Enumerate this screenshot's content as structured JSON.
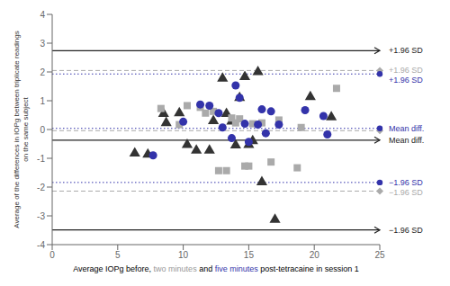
{
  "chart_data": {
    "type": "scatter",
    "xlabel": [
      {
        "text": "Average IOPg before, ",
        "color": "#000000"
      },
      {
        "text": "two minutes",
        "color": "#999999"
      },
      {
        "text": " and ",
        "color": "#000000"
      },
      {
        "text": "five minutes",
        "color": "#3333aa"
      },
      {
        "text": " post-tetracaine in session 1",
        "color": "#000000"
      }
    ],
    "ylabel": "Average of the differences in IOPg between triplicate readings\non the same subject",
    "xlim": [
      0,
      25
    ],
    "ylim": [
      -4,
      4
    ],
    "xticks": [
      0,
      5,
      10,
      15,
      20,
      25
    ],
    "yticks": [
      -4,
      -3,
      -2,
      -1,
      0,
      1,
      2,
      3,
      4
    ],
    "grid": false,
    "series": [
      {
        "color": "#333333",
        "marker": "triangle",
        "x": [
          6.3,
          7.3,
          8.5,
          8.7,
          9.7,
          10.3,
          11.0,
          12.0,
          12.3,
          13.0,
          13.3,
          13.7,
          14.0,
          14.3,
          14.7,
          15.0,
          15.3,
          15.7,
          16.0,
          17.0,
          19.7,
          21.3
        ],
        "values": [
          -0.83,
          -0.87,
          0.55,
          0.23,
          0.57,
          -0.53,
          -0.73,
          -0.73,
          0.3,
          1.77,
          0.55,
          0.28,
          -0.55,
          1.1,
          1.83,
          -0.53,
          -0.4,
          2.0,
          -1.83,
          -3.13,
          1.13,
          0.43
        ]
      },
      {
        "color": "#aaaaaa",
        "marker": "square",
        "x": [
          8.3,
          9.7,
          10.3,
          11.3,
          11.7,
          12.3,
          12.7,
          13.3,
          13.7,
          14.0,
          14.3,
          14.7,
          15.0,
          15.3,
          16.0,
          16.7,
          17.3,
          18.7,
          19.0,
          21.7
        ],
        "values": [
          0.73,
          0.17,
          0.83,
          0.77,
          0.57,
          0.63,
          -1.43,
          -1.43,
          0.4,
          0.23,
          0.37,
          -1.27,
          -1.27,
          0.2,
          0.23,
          -1.13,
          0.33,
          -1.33,
          0.07,
          1.43
        ]
      },
      {
        "color": "#3333aa",
        "marker": "circle",
        "x": [
          7.7,
          10.0,
          11.3,
          12.0,
          12.7,
          13.0,
          13.7,
          14.0,
          14.3,
          14.7,
          15.0,
          15.7,
          16.0,
          16.3,
          16.7,
          17.3,
          19.3,
          20.7,
          21.0
        ],
        "values": [
          -0.9,
          0.27,
          0.87,
          0.83,
          0.57,
          0.07,
          -0.3,
          1.53,
          1.1,
          0.2,
          -0.43,
          0.17,
          0.7,
          -0.13,
          0.63,
          0.17,
          0.67,
          0.47,
          -0.17
        ]
      }
    ],
    "reference_lines": [
      {
        "y": 2.74,
        "color": "#222222",
        "line_style": "solid",
        "marker": "arrow",
        "label": "+1.96 SD"
      },
      {
        "y": -3.49,
        "color": "#222222",
        "line_style": "solid",
        "marker": "arrow",
        "label": "−1.96 SD"
      },
      {
        "y": -0.37,
        "color": "#222222",
        "line_style": "solid",
        "marker": "arrow",
        "label": "Mean diff."
      },
      {
        "y": 2.05,
        "color": "#aaaaaa",
        "line_style": "dashed",
        "marker": "diamond",
        "label": "+1.96 SD"
      },
      {
        "y": -2.14,
        "color": "#aaaaaa",
        "line_style": "dashed",
        "marker": "diamond",
        "label": "−1.96 SD"
      },
      {
        "y": -0.04,
        "color": "#aaaaaa",
        "line_style": "dashed",
        "marker": "diamond"
      },
      {
        "y": 1.93,
        "color": "#3333aa",
        "line_style": "dotted",
        "marker": "circle",
        "label": "+1.96 SD"
      },
      {
        "y": -1.84,
        "color": "#3333aa",
        "line_style": "dotted",
        "marker": "circle",
        "label": "−1.96 SD"
      },
      {
        "y": 0.04,
        "color": "#3333aa",
        "line_style": "dotted",
        "marker": "circle",
        "label": "Mean diff."
      }
    ]
  }
}
